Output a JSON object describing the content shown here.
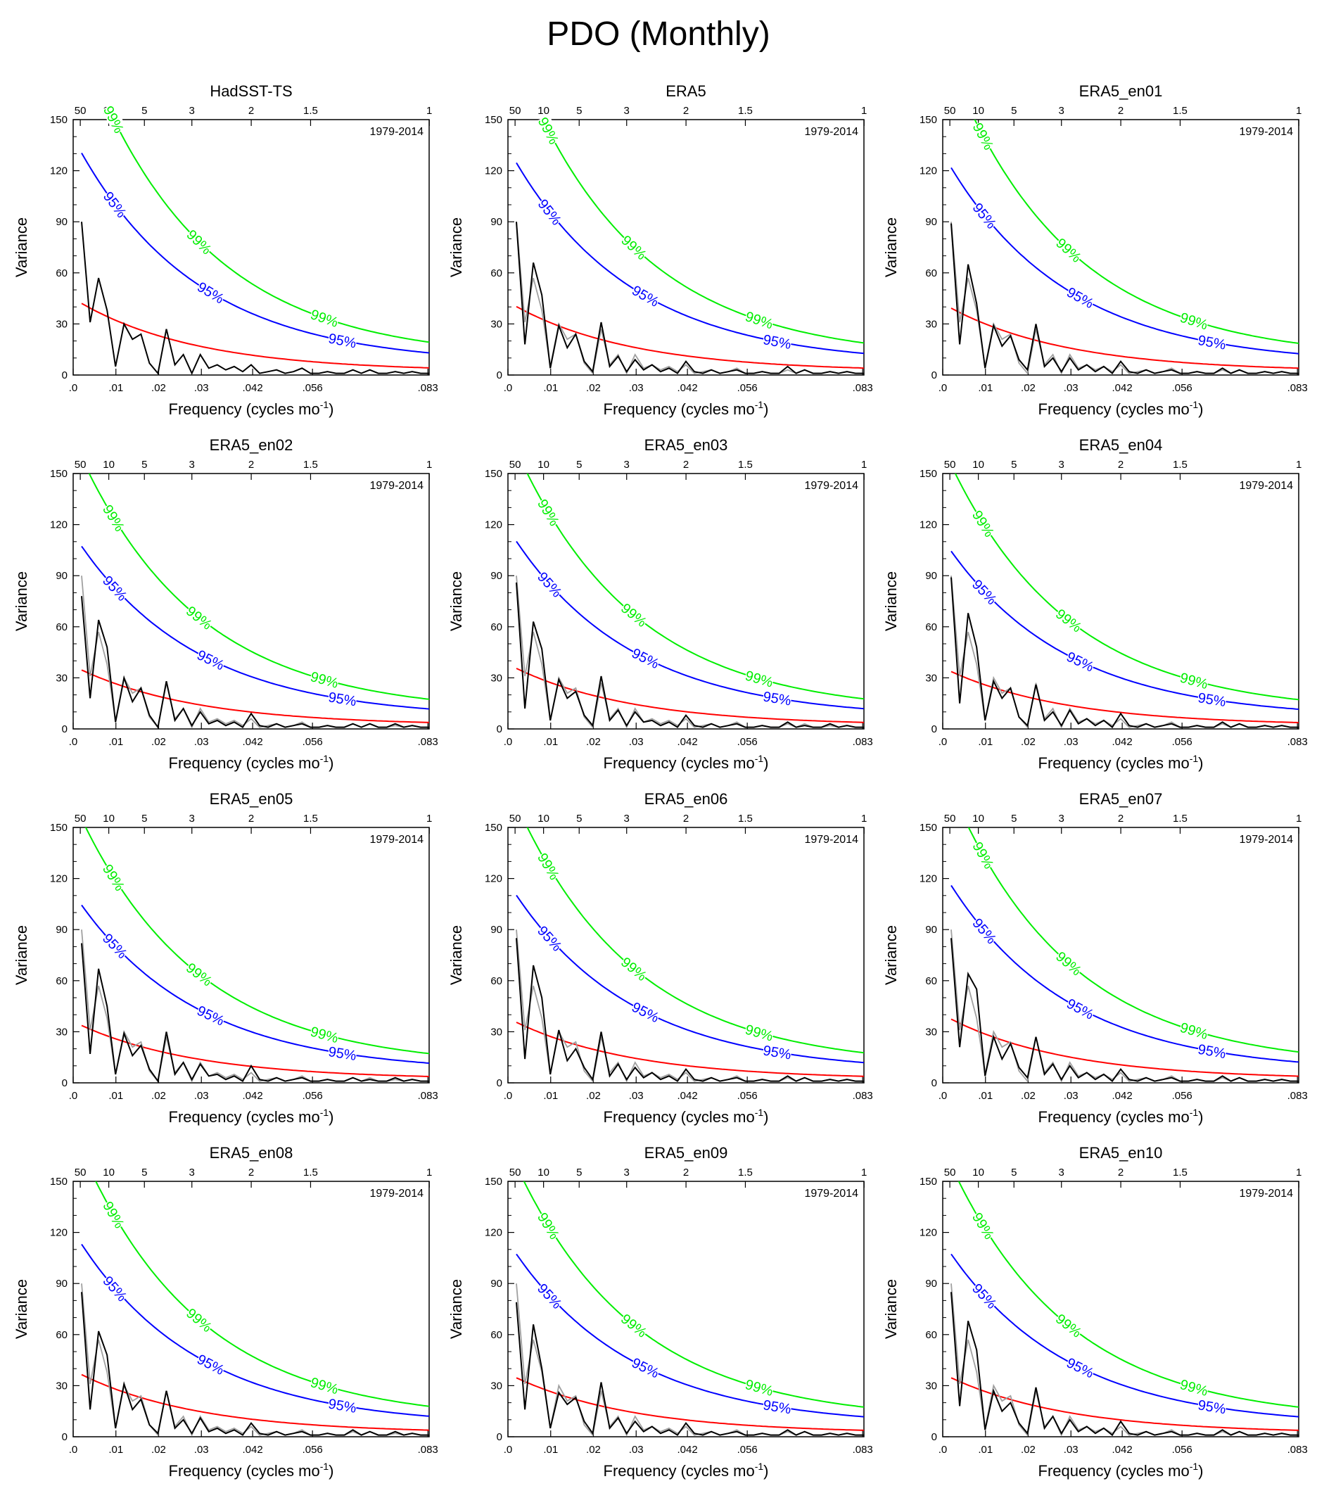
{
  "title": "PDO (Monthly)",
  "chart_data": {
    "type": "line",
    "period_label": "1979-2014",
    "xlabel": "Frequency (cycles mo",
    "xlabel_sup": "-1",
    "ylabel": "Variance",
    "ylim": [
      0,
      150
    ],
    "xlim": [
      0,
      0.0833
    ],
    "y_ticks": [
      0,
      30,
      60,
      90,
      120,
      150
    ],
    "x_ticks": [
      0,
      0.01,
      0.02,
      0.03,
      0.042,
      0.056,
      0.083
    ],
    "x_tick_labels": [
      ".0",
      ".01",
      ".02",
      ".03",
      ".042",
      ".056",
      ".083"
    ],
    "top_ticks": [
      50,
      10,
      5,
      3,
      2,
      1.5,
      1
    ],
    "top_tick_labels": [
      "50",
      "10",
      "5",
      "3",
      "2",
      "1.5",
      "1"
    ],
    "confidence_labels": {
      "c99": "99%",
      "c95": "95%"
    },
    "colors": {
      "spectrum": "#000000",
      "reference": "#a0a0a0",
      "red_noise": "#ff0000",
      "c95": "#0000ff",
      "c99": "#00ee00"
    },
    "panels": [
      {
        "title": "HadSST-TS",
        "red0": 43,
        "spectrum": [
          90,
          31,
          57,
          38,
          5,
          30,
          21,
          24,
          7,
          1,
          27,
          6,
          12,
          1,
          12,
          4,
          6,
          3,
          5,
          2,
          6,
          1,
          2,
          3,
          1,
          2,
          4,
          1,
          1,
          2,
          1,
          1,
          3,
          1,
          3,
          1,
          1,
          2,
          1,
          2,
          1,
          1
        ]
      },
      {
        "title": "ERA5",
        "red0": 41,
        "spectrum": [
          90,
          18,
          66,
          47,
          4,
          29,
          16,
          24,
          8,
          2,
          31,
          5,
          11,
          2,
          9,
          3,
          6,
          2,
          4,
          1,
          8,
          2,
          1,
          3,
          1,
          2,
          3,
          1,
          1,
          2,
          1,
          1,
          5,
          1,
          3,
          1,
          1,
          2,
          1,
          2,
          1,
          1
        ]
      },
      {
        "title": "ERA5_en01",
        "red0": 40,
        "spectrum": [
          89,
          18,
          65,
          42,
          4,
          29,
          17,
          23,
          9,
          3,
          30,
          5,
          10,
          2,
          10,
          3,
          6,
          2,
          5,
          1,
          8,
          2,
          1,
          3,
          1,
          2,
          3,
          1,
          1,
          2,
          1,
          1,
          4,
          1,
          3,
          1,
          1,
          2,
          1,
          2,
          1,
          1
        ]
      },
      {
        "title": "ERA5_en02",
        "red0": 35,
        "spectrum": [
          78,
          18,
          64,
          48,
          4,
          30,
          16,
          24,
          8,
          1,
          28,
          5,
          12,
          2,
          10,
          3,
          5,
          2,
          4,
          1,
          9,
          2,
          1,
          3,
          1,
          2,
          3,
          1,
          1,
          2,
          1,
          1,
          3,
          1,
          3,
          1,
          1,
          3,
          1,
          2,
          1,
          1
        ]
      },
      {
        "title": "ERA5_en03",
        "red0": 36,
        "spectrum": [
          86,
          12,
          63,
          47,
          5,
          29,
          18,
          22,
          8,
          2,
          31,
          5,
          11,
          2,
          10,
          4,
          5,
          2,
          4,
          1,
          8,
          2,
          1,
          3,
          1,
          2,
          3,
          1,
          1,
          2,
          1,
          1,
          4,
          1,
          2,
          1,
          1,
          3,
          1,
          2,
          1,
          1
        ]
      },
      {
        "title": "ERA5_en04",
        "red0": 34,
        "spectrum": [
          89,
          15,
          68,
          48,
          5,
          28,
          18,
          24,
          7,
          2,
          26,
          5,
          10,
          2,
          11,
          3,
          6,
          2,
          5,
          1,
          9,
          2,
          1,
          3,
          1,
          2,
          3,
          1,
          1,
          2,
          1,
          1,
          4,
          1,
          3,
          1,
          1,
          2,
          1,
          2,
          1,
          1
        ]
      },
      {
        "title": "ERA5_en05",
        "red0": 34,
        "spectrum": [
          82,
          17,
          67,
          45,
          5,
          29,
          16,
          22,
          8,
          1,
          30,
          5,
          12,
          2,
          11,
          4,
          5,
          2,
          4,
          1,
          10,
          2,
          1,
          3,
          1,
          2,
          3,
          1,
          1,
          2,
          1,
          1,
          3,
          1,
          2,
          1,
          1,
          3,
          1,
          2,
          1,
          1
        ]
      },
      {
        "title": "ERA5_en06",
        "red0": 36,
        "spectrum": [
          85,
          14,
          69,
          50,
          5,
          31,
          13,
          20,
          9,
          2,
          30,
          4,
          11,
          2,
          9,
          3,
          6,
          2,
          4,
          1,
          8,
          2,
          1,
          3,
          1,
          2,
          3,
          1,
          1,
          2,
          1,
          1,
          4,
          1,
          3,
          1,
          1,
          2,
          1,
          2,
          1,
          1
        ]
      },
      {
        "title": "ERA5_en07",
        "red0": 38,
        "spectrum": [
          85,
          21,
          64,
          55,
          4,
          27,
          14,
          23,
          9,
          3,
          27,
          5,
          11,
          2,
          10,
          3,
          6,
          2,
          5,
          1,
          8,
          2,
          1,
          3,
          1,
          2,
          3,
          1,
          1,
          2,
          1,
          1,
          4,
          1,
          3,
          1,
          1,
          2,
          1,
          2,
          1,
          1
        ]
      },
      {
        "title": "ERA5_en08",
        "red0": 37,
        "spectrum": [
          85,
          16,
          62,
          48,
          5,
          31,
          16,
          22,
          7,
          2,
          27,
          5,
          10,
          2,
          11,
          3,
          5,
          2,
          4,
          1,
          8,
          2,
          1,
          3,
          1,
          2,
          3,
          1,
          1,
          2,
          1,
          1,
          4,
          1,
          3,
          1,
          1,
          3,
          1,
          2,
          1,
          1
        ]
      },
      {
        "title": "ERA5_en09",
        "red0": 35,
        "spectrum": [
          79,
          16,
          66,
          40,
          5,
          26,
          19,
          23,
          9,
          2,
          32,
          5,
          11,
          2,
          9,
          3,
          6,
          2,
          4,
          1,
          8,
          2,
          1,
          3,
          1,
          2,
          3,
          1,
          1,
          2,
          1,
          1,
          4,
          1,
          3,
          1,
          1,
          2,
          1,
          2,
          1,
          1
        ]
      },
      {
        "title": "ERA5_en10",
        "red0": 35,
        "spectrum": [
          85,
          18,
          68,
          51,
          4,
          27,
          15,
          20,
          8,
          2,
          29,
          5,
          12,
          2,
          10,
          3,
          6,
          2,
          5,
          1,
          9,
          2,
          1,
          3,
          1,
          2,
          3,
          1,
          1,
          2,
          1,
          1,
          4,
          1,
          3,
          1,
          1,
          2,
          1,
          2,
          1,
          1
        ]
      }
    ],
    "reference_spectrum": [
      90,
      31,
      57,
      38,
      5,
      30,
      21,
      24,
      7,
      1,
      27,
      6,
      12,
      1,
      12,
      4,
      6,
      3,
      5,
      2,
      6,
      1,
      2,
      3,
      1,
      2,
      4,
      1,
      1,
      2,
      1,
      1,
      3,
      1,
      3,
      1,
      1,
      2,
      1,
      2,
      1,
      1
    ]
  }
}
